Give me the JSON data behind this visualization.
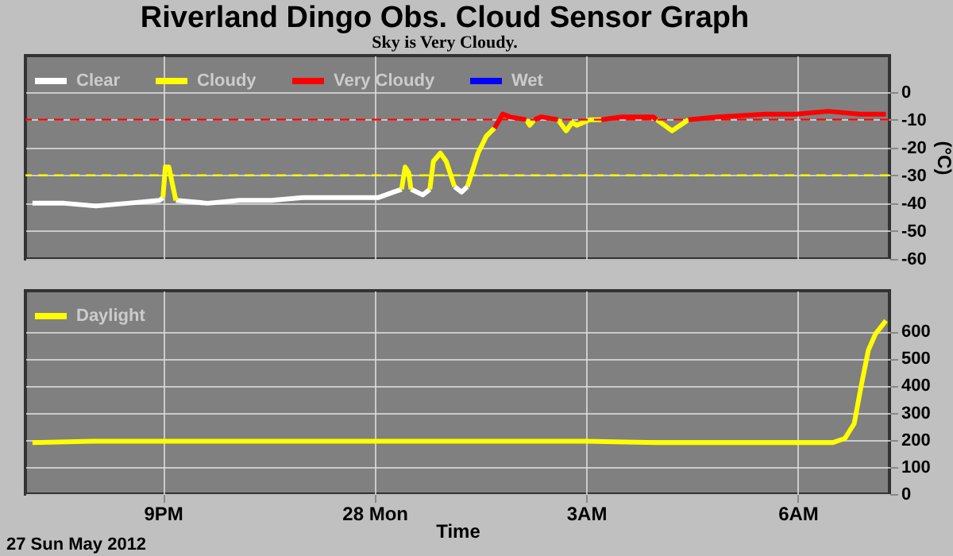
{
  "chart_data": [
    {
      "type": "line",
      "title": "Riverland Dingo Obs. Cloud Sensor Graph",
      "subtitle": "Sky is Very Cloudy.",
      "ylabel": "(°C)",
      "xlim": [
        "2012-05-27T19:03",
        "2012-05-28T07:18"
      ],
      "ylim": [
        -60,
        13
      ],
      "yticks": [
        0,
        -10,
        -20,
        -30,
        -40,
        -50,
        -60
      ],
      "xticks": [
        {
          "value": "2012-05-27T21:00",
          "label": null
        },
        {
          "value": "2012-05-28T00:00",
          "label": null
        },
        {
          "value": "2012-05-28T03:00",
          "label": null
        },
        {
          "value": "2012-05-28T06:00",
          "label": null
        }
      ],
      "tick_labels": "y",
      "grid": true,
      "legend": "top left",
      "ref_lines": [
        {
          "axis": "y",
          "value": -10,
          "color": "#ff0000",
          "line_style": "dashed"
        },
        {
          "axis": "y",
          "value": -30,
          "color": "#ffff00",
          "line_style": "dashed"
        }
      ],
      "series": [
        {
          "name": "Clear",
          "color": "#ffffff",
          "x": [
            "2012-05-27T19:09",
            "2012-05-27T19:36",
            "2012-05-27T20:03",
            "2012-05-27T20:30",
            "2012-05-27T20:57",
            "2012-05-27T21:00",
            "2012-05-27T21:05",
            "2012-05-27T21:11",
            "2012-05-27T21:38",
            "2012-05-27T22:05",
            "2012-05-27T22:32",
            "2012-05-27T22:59",
            "2012-05-27T23:26",
            "2012-05-28T00:03",
            "2012-05-28T00:16",
            "2012-05-28T00:23",
            "2012-05-28T00:27",
            "2012-05-28T00:31",
            "2012-05-28T00:41",
            "2012-05-28T00:47",
            "2012-05-28T00:57",
            "2012-05-28T01:08",
            "2012-05-28T01:14",
            "2012-05-28T01:19"
          ],
          "values": [
            -40,
            -40,
            -41,
            -40,
            -39,
            -38,
            null,
            -39,
            -40,
            -39,
            -39,
            -38,
            -38,
            -38,
            -36,
            -35,
            null,
            -35,
            -37,
            -35,
            null,
            -34,
            -36,
            -34
          ]
        },
        {
          "name": "Cloudy",
          "color": "#ffff00",
          "x": [
            "2012-05-27T21:00",
            "2012-05-27T21:02",
            "2012-05-27T21:05",
            "2012-05-27T21:11",
            "2012-05-27T23:00",
            "2012-05-28T00:23",
            "2012-05-28T00:26",
            "2012-05-28T00:29",
            "2012-05-28T00:31",
            "2012-05-28T00:36",
            "2012-05-28T00:47",
            "2012-05-28T00:50",
            "2012-05-28T00:56",
            "2012-05-28T01:01",
            "2012-05-28T01:08",
            "2012-05-28T01:12",
            "2012-05-28T01:19",
            "2012-05-28T01:28",
            "2012-05-28T01:35",
            "2012-05-28T01:42",
            "2012-05-28T01:54",
            "2012-05-28T02:09",
            "2012-05-28T02:12",
            "2012-05-28T02:16",
            "2012-05-28T02:24",
            "2012-05-28T02:36",
            "2012-05-28T02:43",
            "2012-05-28T02:48",
            "2012-05-28T02:52",
            "2012-05-28T03:03",
            "2012-05-28T03:13",
            "2012-05-28T03:36",
            "2012-05-28T04:00",
            "2012-05-28T04:13",
            "2012-05-28T04:27"
          ],
          "values": [
            -38,
            -27,
            -27,
            -39,
            null,
            -35,
            -27,
            -29,
            -35,
            null,
            -35,
            -25,
            -22,
            -25,
            -34,
            null,
            -34,
            -22,
            -16,
            -13,
            null,
            -10,
            -12,
            -10,
            null,
            -10,
            -14,
            -11,
            -12,
            -10,
            -10,
            null,
            -10,
            -14,
            -10
          ]
        },
        {
          "name": "Very Cloudy",
          "color": "#ff0000",
          "x": [
            "2012-05-28T01:42",
            "2012-05-28T01:49",
            "2012-05-28T01:55",
            "2012-05-28T02:09",
            "2012-05-28T02:12",
            "2012-05-28T02:16",
            "2012-05-28T02:22",
            "2012-05-28T02:36",
            "2012-05-28T02:54",
            "2012-05-28T03:13",
            "2012-05-28T03:30",
            "2012-05-28T03:57",
            "2012-05-28T04:00",
            "2012-05-28T04:13",
            "2012-05-28T04:27",
            "2012-05-28T04:52",
            "2012-05-28T05:32",
            "2012-05-28T05:59",
            "2012-05-28T06:26",
            "2012-05-28T06:53",
            "2012-05-28T07:15"
          ],
          "values": [
            -13,
            -8,
            -9,
            -10,
            null,
            -10,
            -9,
            -10,
            null,
            -10,
            -9,
            -9,
            -10,
            null,
            -10,
            -9,
            -8,
            -8,
            -7,
            -8,
            -8
          ]
        },
        {
          "name": "Wet",
          "color": "#0000ff"
        }
      ]
    },
    {
      "type": "line",
      "xlabel": "Time",
      "annotations": [
        "27 Sun May 2012"
      ],
      "xlim": [
        "2012-05-27T19:03",
        "2012-05-28T07:18"
      ],
      "ylim": [
        0,
        750
      ],
      "yticks": [
        0,
        100,
        200,
        300,
        400,
        500,
        600
      ],
      "xticks": [
        {
          "value": "2012-05-27T21:00",
          "label": "9PM"
        },
        {
          "value": "2012-05-28T00:00",
          "label": "28 Mon"
        },
        {
          "value": "2012-05-28T03:00",
          "label": "3AM"
        },
        {
          "value": "2012-05-28T06:00",
          "label": "6AM"
        }
      ],
      "grid": true,
      "legend": "top left",
      "series": [
        {
          "name": "Daylight",
          "color": "#ffff00",
          "x": [
            "2012-05-27T19:09",
            "2012-05-27T20:00",
            "2012-05-27T21:00",
            "2012-05-27T22:00",
            "2012-05-27T23:00",
            "2012-05-28T00:00",
            "2012-05-28T01:00",
            "2012-05-28T02:00",
            "2012-05-28T03:00",
            "2012-05-28T04:00",
            "2012-05-28T05:00",
            "2012-05-28T06:00",
            "2012-05-28T06:30",
            "2012-05-28T06:40",
            "2012-05-28T06:48",
            "2012-05-28T06:54",
            "2012-05-28T07:00",
            "2012-05-28T07:06",
            "2012-05-28T07:15"
          ],
          "values": [
            190,
            195,
            195,
            195,
            195,
            195,
            195,
            195,
            195,
            190,
            190,
            190,
            190,
            205,
            260,
            400,
            530,
            590,
            640
          ]
        }
      ]
    }
  ]
}
